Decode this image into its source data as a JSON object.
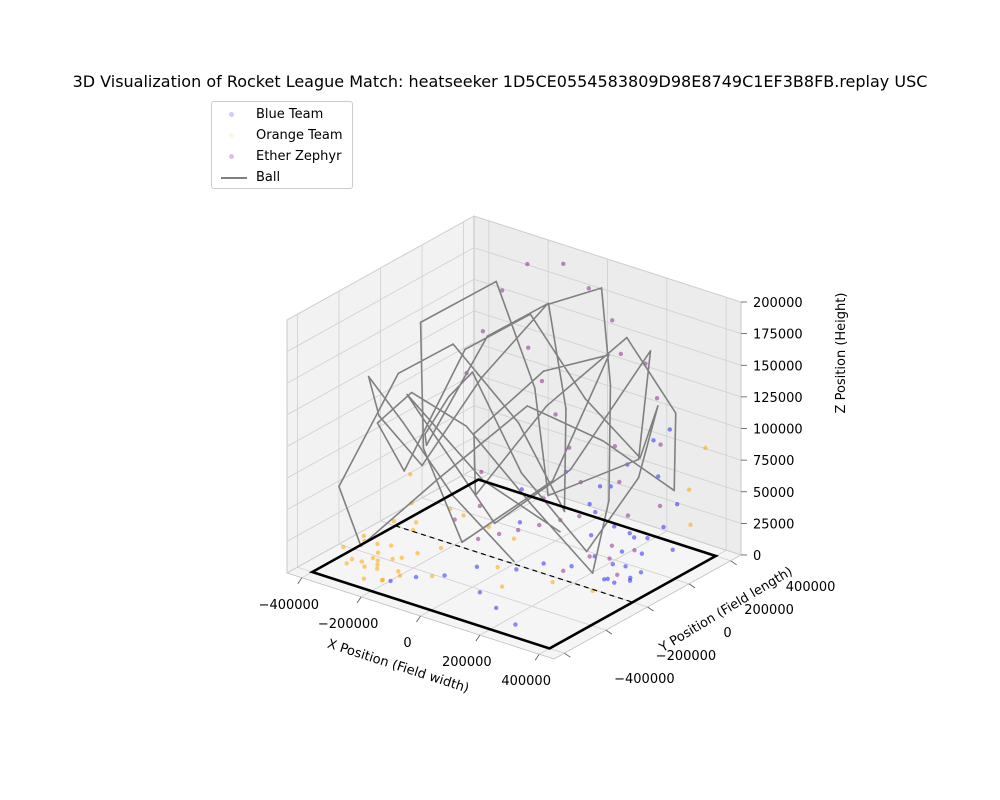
{
  "chart_data": {
    "type": "scatter",
    "title": "3D Visualization of Rocket League Match: heatseeker 1D5CE0554583809D98E8749C1EF3B8FB.replay USC",
    "xlabel": "X Position (Field width)",
    "ylabel": "Y Position (Field length)",
    "zlabel": "Z Position (Height)",
    "xlim": [
      -450000,
      450000
    ],
    "ylim": [
      -450000,
      450000
    ],
    "zlim": [
      0,
      200000
    ],
    "x_ticks": [
      -400000,
      -200000,
      0,
      200000,
      400000
    ],
    "y_ticks": [
      -400000,
      -200000,
      0,
      200000,
      400000
    ],
    "z_ticks": [
      0,
      25000,
      50000,
      75000,
      100000,
      125000,
      150000,
      175000,
      200000
    ],
    "x_tick_labels": [
      "−400000",
      "−200000",
      "0",
      "200000",
      "400000"
    ],
    "y_tick_labels": [
      "−400000",
      "−200000",
      "0",
      "200000",
      "400000"
    ],
    "z_tick_labels": [
      "0",
      "25000",
      "50000",
      "75000",
      "100000",
      "125000",
      "150000",
      "175000",
      "200000"
    ],
    "grid": true,
    "legend_position": "top-left",
    "colors": {
      "blue": "#0000ff",
      "orange": "#ffa500",
      "ether": "#800080",
      "ball": "#808080",
      "field": "#000000"
    },
    "series": [
      {
        "name": "Blue Team",
        "kind": "points",
        "points": [
          [
            320000,
            80000,
            15000
          ],
          [
            280000,
            120000,
            20000
          ],
          [
            350000,
            60000,
            10000
          ],
          [
            300000,
            150000,
            30000
          ],
          [
            250000,
            200000,
            25000
          ],
          [
            380000,
            100000,
            40000
          ],
          [
            400000,
            40000,
            20000
          ],
          [
            330000,
            -20000,
            15000
          ],
          [
            200000,
            180000,
            60000
          ],
          [
            150000,
            150000,
            45000
          ],
          [
            360000,
            180000,
            80000
          ],
          [
            420000,
            120000,
            50000
          ],
          [
            310000,
            40000,
            5000
          ],
          [
            270000,
            90000,
            12000
          ],
          [
            230000,
            60000,
            18000
          ],
          [
            180000,
            20000,
            10000
          ],
          [
            100000,
            0,
            8000
          ],
          [
            50000,
            -60000,
            5000
          ],
          [
            -20000,
            -150000,
            10000
          ],
          [
            -80000,
            -220000,
            5000
          ],
          [
            -120000,
            -300000,
            8000
          ],
          [
            -150000,
            -380000,
            10000
          ],
          [
            60000,
            -250000,
            5000
          ],
          [
            150000,
            -300000,
            4000
          ],
          [
            250000,
            -350000,
            3000
          ],
          [
            -50000,
            100000,
            20000
          ],
          [
            -100000,
            180000,
            35000
          ],
          [
            0,
            250000,
            50000
          ],
          [
            80000,
            300000,
            40000
          ],
          [
            120000,
            220000,
            30000
          ],
          [
            200000,
            260000,
            70000
          ],
          [
            260000,
            300000,
            90000
          ],
          [
            350000,
            250000,
            110000
          ],
          [
            410000,
            200000,
            60000
          ],
          [
            430000,
            150000,
            30000
          ],
          [
            290000,
            20000,
            8000
          ],
          [
            340000,
            130000,
            22000
          ],
          [
            370000,
            30000,
            12000
          ],
          [
            240000,
            140000,
            35000
          ],
          [
            190000,
            100000,
            28000
          ]
        ]
      },
      {
        "name": "Orange Team",
        "kind": "points",
        "points": [
          [
            -300000,
            -250000,
            5000
          ],
          [
            -250000,
            -300000,
            8000
          ],
          [
            -200000,
            -350000,
            4000
          ],
          [
            -320000,
            -200000,
            10000
          ],
          [
            -280000,
            -320000,
            6000
          ],
          [
            -350000,
            -280000,
            3000
          ],
          [
            -220000,
            -270000,
            12000
          ],
          [
            -260000,
            -220000,
            15000
          ],
          [
            -180000,
            -300000,
            8000
          ],
          [
            -150000,
            -250000,
            20000
          ],
          [
            -300000,
            -150000,
            25000
          ],
          [
            -380000,
            -180000,
            10000
          ],
          [
            -400000,
            -250000,
            6000
          ],
          [
            -240000,
            -380000,
            5000
          ],
          [
            -200000,
            -200000,
            30000
          ],
          [
            -120000,
            -180000,
            20000
          ],
          [
            -80000,
            -280000,
            10000
          ],
          [
            -340000,
            -320000,
            4000
          ],
          [
            -270000,
            -270000,
            7000
          ],
          [
            -230000,
            -330000,
            9000
          ],
          [
            -310000,
            -290000,
            5000
          ],
          [
            -190000,
            -360000,
            6000
          ],
          [
            -350000,
            -220000,
            12000
          ],
          [
            -160000,
            -320000,
            8000
          ],
          [
            -100000,
            -100000,
            40000
          ],
          [
            -50000,
            -50000,
            30000
          ],
          [
            0,
            0,
            20000
          ],
          [
            50000,
            -150000,
            15000
          ],
          [
            100000,
            -200000,
            8000
          ],
          [
            380000,
            300000,
            60000
          ],
          [
            400000,
            350000,
            90000
          ],
          [
            420000,
            250000,
            40000
          ],
          [
            -420000,
            100000,
            30000
          ],
          [
            -380000,
            50000,
            15000
          ],
          [
            -330000,
            0,
            8000
          ],
          [
            -250000,
            50000,
            20000
          ],
          [
            200000,
            -100000,
            10000
          ],
          [
            300000,
            -50000,
            6000
          ],
          [
            -290000,
            -240000,
            9000
          ],
          [
            -210000,
            -240000,
            11000
          ]
        ]
      },
      {
        "name": "Ether Zephyr",
        "kind": "points",
        "points": [
          [
            -200000,
            350000,
            190000
          ],
          [
            -100000,
            380000,
            195000
          ],
          [
            0,
            360000,
            185000
          ],
          [
            100000,
            330000,
            170000
          ],
          [
            150000,
            300000,
            150000
          ],
          [
            -250000,
            300000,
            170000
          ],
          [
            -280000,
            250000,
            140000
          ],
          [
            -300000,
            200000,
            110000
          ],
          [
            200000,
            200000,
            90000
          ],
          [
            250000,
            150000,
            70000
          ],
          [
            300000,
            120000,
            50000
          ],
          [
            350000,
            80000,
            30000
          ],
          [
            150000,
            100000,
            40000
          ],
          [
            100000,
            80000,
            35000
          ],
          [
            50000,
            50000,
            30000
          ],
          [
            0,
            20000,
            25000
          ],
          [
            -50000,
            0,
            20000
          ],
          [
            -100000,
            -30000,
            15000
          ],
          [
            280000,
            60000,
            20000
          ],
          [
            320000,
            40000,
            12000
          ],
          [
            260000,
            100000,
            25000
          ],
          [
            220000,
            50000,
            18000
          ],
          [
            180000,
            -20000,
            10000
          ],
          [
            120000,
            150000,
            60000
          ],
          [
            60000,
            180000,
            80000
          ],
          [
            0,
            200000,
            100000
          ],
          [
            -60000,
            220000,
            120000
          ],
          [
            -120000,
            240000,
            140000
          ],
          [
            380000,
            160000,
            60000
          ],
          [
            340000,
            220000,
            100000
          ],
          [
            300000,
            260000,
            130000
          ],
          [
            240000,
            290000,
            150000
          ],
          [
            -150000,
            50000,
            30000
          ],
          [
            -200000,
            0,
            20000
          ],
          [
            -180000,
            100000,
            50000
          ],
          [
            30000,
            100000,
            45000
          ]
        ]
      },
      {
        "name": "Ball",
        "kind": "line",
        "points": [
          [
            0,
            0,
            2000
          ],
          [
            -100000,
            -150000,
            60000
          ],
          [
            -200000,
            -250000,
            120000
          ],
          [
            -350000,
            -200000,
            140000
          ],
          [
            -420000,
            -50000,
            90000
          ],
          [
            -380000,
            100000,
            40000
          ],
          [
            -250000,
            200000,
            110000
          ],
          [
            -100000,
            300000,
            170000
          ],
          [
            50000,
            350000,
            190000
          ],
          [
            150000,
            250000,
            130000
          ],
          [
            250000,
            100000,
            60000
          ],
          [
            300000,
            -50000,
            20000
          ],
          [
            200000,
            -200000,
            80000
          ],
          [
            50000,
            -300000,
            140000
          ],
          [
            -100000,
            -350000,
            160000
          ],
          [
            -250000,
            -300000,
            120000
          ],
          [
            -300000,
            -100000,
            60000
          ],
          [
            -200000,
            50000,
            150000
          ],
          [
            -50000,
            150000,
            180000
          ],
          [
            100000,
            200000,
            120000
          ],
          [
            250000,
            250000,
            80000
          ],
          [
            380000,
            150000,
            140000
          ],
          [
            420000,
            0,
            100000
          ],
          [
            350000,
            -150000,
            50000
          ],
          [
            200000,
            -250000,
            110000
          ],
          [
            0,
            -200000,
            170000
          ],
          [
            -150000,
            -100000,
            130000
          ],
          [
            -300000,
            0,
            80000
          ],
          [
            -400000,
            150000,
            50000
          ],
          [
            -300000,
            300000,
            130000
          ],
          [
            -150000,
            380000,
            160000
          ],
          [
            0,
            250000,
            100000
          ],
          [
            100000,
            100000,
            40000
          ],
          [
            50000,
            -50000,
            120000
          ],
          [
            -100000,
            -150000,
            180000
          ],
          [
            -250000,
            -200000,
            150000
          ],
          [
            -380000,
            -300000,
            60000
          ],
          [
            -250000,
            -380000,
            30000
          ],
          [
            -50000,
            -300000,
            90000
          ],
          [
            150000,
            -150000,
            150000
          ],
          [
            300000,
            0,
            120000
          ],
          [
            400000,
            200000,
            70000
          ],
          [
            300000,
            350000,
            110000
          ],
          [
            100000,
            400000,
            150000
          ],
          [
            -100000,
            300000,
            90000
          ],
          [
            -200000,
            100000,
            30000
          ],
          [
            -100000,
            -50000,
            100000
          ],
          [
            100000,
            0,
            160000
          ],
          [
            250000,
            100000,
            175000
          ],
          [
            200000,
            -100000,
            90000
          ],
          [
            0,
            -250000,
            40000
          ],
          [
            -200000,
            -150000,
            90000
          ],
          [
            -350000,
            50000,
            160000
          ],
          [
            -200000,
            200000,
            190000
          ],
          [
            0,
            100000,
            130000
          ],
          [
            150000,
            -50000,
            70000
          ],
          [
            350000,
            100000,
            100000
          ],
          [
            250000,
            300000,
            160000
          ],
          [
            50000,
            200000,
            60000
          ],
          [
            -100000,
            50000,
            20000
          ],
          [
            -250000,
            -100000,
            110000
          ],
          [
            -150000,
            -300000,
            150000
          ],
          [
            0,
            -150000,
            80000
          ],
          [
            120000,
            50000,
            30000
          ]
        ]
      }
    ]
  }
}
